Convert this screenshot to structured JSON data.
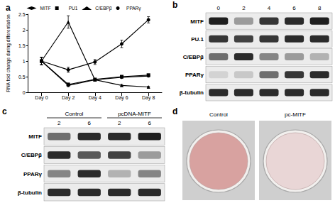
{
  "chart_data": {
    "type": "line",
    "panel_label": "a",
    "y_label": "RNA fold change during differentiation",
    "categories": [
      "Day 0",
      "Day 2",
      "Day 4",
      "Day 6",
      "Day 8"
    ],
    "ylim": [
      0,
      2.5
    ],
    "yticks": [
      0,
      0.5,
      1,
      1.5,
      2,
      2.5
    ],
    "grid": false,
    "legend": "top",
    "series": [
      {
        "name": "MITF",
        "color": "#000000",
        "marker": "diamond",
        "values": [
          1,
          0.22,
          0.4,
          0.48,
          0.52
        ],
        "errors": [
          0.12,
          0.04,
          0.03,
          0.03,
          0.03
        ]
      },
      {
        "name": "PU1",
        "color": "#000000",
        "marker": "square",
        "values": [
          1,
          0.25,
          0.41,
          0.5,
          0.55
        ],
        "errors": [
          0.12,
          0.04,
          0.03,
          0.03,
          0.03
        ]
      },
      {
        "name": "C/EBPβ",
        "color": "#000000",
        "marker": "triangle",
        "values": [
          1,
          2.25,
          0.4,
          0.22,
          0.17
        ],
        "errors": [
          0.12,
          0.2,
          0.03,
          0.03,
          0.02
        ]
      },
      {
        "name": "PPARγ",
        "color": "#000000",
        "marker": "circle",
        "values": [
          1,
          0.72,
          0.97,
          1.55,
          2.32
        ],
        "errors": [
          0.12,
          0.08,
          0.08,
          0.12,
          0.1
        ]
      }
    ]
  },
  "blots": [
    {
      "panel_label": "b",
      "groups": [
        {
          "label": null,
          "lanes": [
            "0",
            "2",
            "4",
            "6",
            "8"
          ]
        }
      ],
      "rows": [
        {
          "label": "MITF",
          "intensity": [
            0.95,
            0.4,
            0.85,
            0.9,
            0.95
          ]
        },
        {
          "label": "PU.1",
          "intensity": [
            0.85,
            0.8,
            0.85,
            0.9,
            0.9
          ]
        },
        {
          "label": "C/EBPβ",
          "intensity": [
            0.6,
            0.9,
            0.5,
            0.4,
            0.3
          ]
        },
        {
          "label": "PPARγ",
          "intensity": [
            0.15,
            0.2,
            0.6,
            0.85,
            0.9
          ]
        },
        {
          "label": "β-tubulin",
          "intensity": [
            0.9,
            0.9,
            0.9,
            0.9,
            0.9
          ]
        }
      ]
    },
    {
      "panel_label": "c",
      "groups": [
        {
          "label": "Control",
          "lanes": [
            "2",
            "6"
          ]
        },
        {
          "label": "pcDNA-MITF",
          "lanes": [
            "2",
            "6"
          ]
        }
      ],
      "rows": [
        {
          "label": "MITF",
          "intensity": [
            0.6,
            0.9,
            0.9,
            0.95
          ]
        },
        {
          "label": "C/EBPβ",
          "intensity": [
            0.9,
            0.7,
            0.8,
            0.4
          ]
        },
        {
          "label": "PPARγ",
          "intensity": [
            0.5,
            0.9,
            0.3,
            0.5
          ]
        },
        {
          "label": "β-tubulin",
          "intensity": [
            0.9,
            0.9,
            0.9,
            0.9
          ]
        }
      ]
    }
  ],
  "photos": {
    "panel_label": "d",
    "dishes": [
      {
        "label": "Control",
        "color": "#d8a2a0"
      },
      {
        "label": "pc-MITF",
        "color": "#e9d6d6"
      }
    ]
  }
}
